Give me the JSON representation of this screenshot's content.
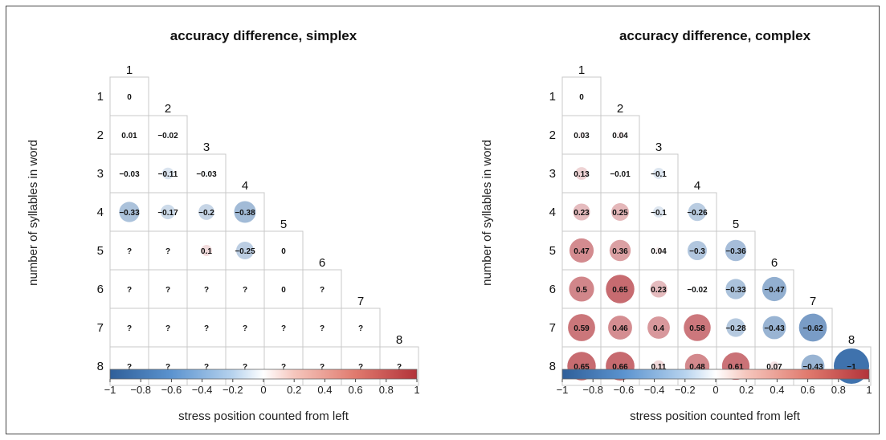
{
  "chart_data": [
    {
      "type": "heatmap",
      "title": "accuracy difference, simplex",
      "xlabel": "stress position counted from left",
      "ylabel": "number of syllables in word",
      "rows": [
        "1",
        "2",
        "3",
        "4",
        "5",
        "6",
        "7",
        "8"
      ],
      "columns": [
        "1",
        "2",
        "3",
        "4",
        "5",
        "6",
        "7",
        "8"
      ],
      "cells": [
        [
          "0"
        ],
        [
          "0.01",
          "-0.02"
        ],
        [
          "-0.03",
          "-0.11",
          "-0.03"
        ],
        [
          "-0.33",
          "-0.17",
          "-0.2",
          "-0.38"
        ],
        [
          "?",
          "?",
          "0.1",
          "-0.25",
          "0"
        ],
        [
          "?",
          "?",
          "?",
          "?",
          "0",
          "?"
        ],
        [
          "?",
          "?",
          "?",
          "?",
          "?",
          "?",
          "?"
        ],
        [
          "?",
          "?",
          "?",
          "?",
          "?",
          "?",
          "?",
          "?"
        ]
      ],
      "colorbar": {
        "min": -1,
        "max": 1,
        "ticks": [
          "−1",
          "−0.8",
          "−0.6",
          "−0.4",
          "−0.2",
          "0",
          "0.2",
          "0.4",
          "0.6",
          "0.8",
          "1"
        ]
      }
    },
    {
      "type": "heatmap",
      "title": "accuracy difference, complex",
      "xlabel": "stress position counted from left",
      "ylabel": "number of syllables in word",
      "rows": [
        "1",
        "2",
        "3",
        "4",
        "5",
        "6",
        "7",
        "8"
      ],
      "columns": [
        "1",
        "2",
        "3",
        "4",
        "5",
        "6",
        "7",
        "8"
      ],
      "cells": [
        [
          "0"
        ],
        [
          "0.03",
          "0.04"
        ],
        [
          "0.13",
          "-0.01",
          "-0.1"
        ],
        [
          "0.23",
          "0.25",
          "-0.1",
          "-0.26"
        ],
        [
          "0.47",
          "0.36",
          "0.04",
          "-0.3",
          "-0.36"
        ],
        [
          "0.5",
          "0.65",
          "0.23",
          "-0.02",
          "-0.33",
          "-0.47"
        ],
        [
          "0.59",
          "0.46",
          "0.4",
          "0.58",
          "-0.28",
          "-0.43",
          "-0.62"
        ],
        [
          "0.65",
          "0.66",
          "0.11",
          "0.48",
          "0.61",
          "0.07",
          "-0.43",
          "-1"
        ]
      ],
      "colorbar": {
        "min": -1,
        "max": 1,
        "ticks": [
          "−1",
          "−0.8",
          "−0.6",
          "−0.4",
          "−0.2",
          "0",
          "0.2",
          "0.4",
          "0.6",
          "0.8",
          "1"
        ]
      }
    }
  ],
  "colors": {
    "negative": "#3f72ad",
    "neutral": "#ffffff",
    "positive": "#b2333a",
    "grid": "#c8c8c8"
  }
}
